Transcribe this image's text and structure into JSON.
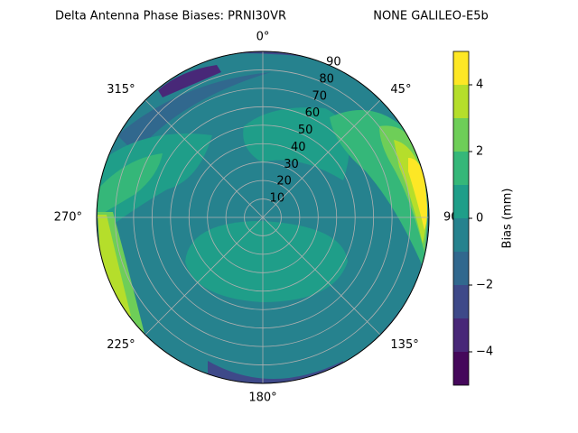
{
  "chart_data": {
    "type": "polar_contour",
    "title": "Delta Antenna Phase Biases: PRNI30VR",
    "subtitle": "NONE GALILEO-E5b",
    "rlim": [
      0,
      90
    ],
    "rticks": [
      10,
      20,
      30,
      40,
      50,
      60,
      70,
      80,
      90
    ],
    "thetaticks": [
      {
        "value": 0,
        "label": "0°"
      },
      {
        "value": 45,
        "label": "45°"
      },
      {
        "value": 90,
        "label": "90°"
      },
      {
        "value": 135,
        "label": "135°"
      },
      {
        "value": 180,
        "label": "180°"
      },
      {
        "value": 225,
        "label": "225°"
      },
      {
        "value": 270,
        "label": "270°"
      },
      {
        "value": 315,
        "label": "315°"
      }
    ],
    "grid": true,
    "levels": [
      -5,
      -4,
      -3,
      -2,
      -1,
      0,
      1,
      2,
      3,
      4,
      5
    ],
    "colors": [
      "#45085b",
      "#482878",
      "#3e4989",
      "#31688e",
      "#26828e",
      "#1f9e89",
      "#35b779",
      "#6ece58",
      "#b5de2b",
      "#fde725"
    ],
    "colorbar_label": "Bias (mm)",
    "clim": [
      -5,
      5
    ],
    "cticks": [
      {
        "value": -4,
        "label": "−4"
      },
      {
        "value": -2,
        "label": "−2"
      },
      {
        "value": 0,
        "label": "0"
      },
      {
        "value": 2,
        "label": "2"
      },
      {
        "value": 4,
        "label": "4"
      }
    ]
  }
}
